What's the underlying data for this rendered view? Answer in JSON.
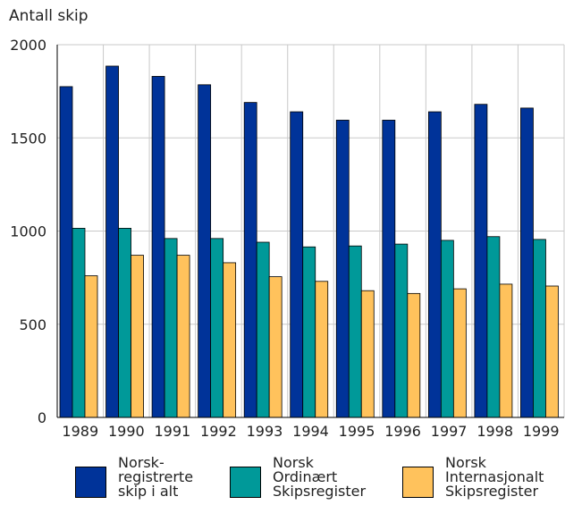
{
  "chart_data": {
    "type": "bar",
    "ylabel": "Antall skip",
    "categories": [
      "1989",
      "1990",
      "1991",
      "1992",
      "1993",
      "1994",
      "1995",
      "1996",
      "1997",
      "1998",
      "1999"
    ],
    "ylim": [
      0,
      2000
    ],
    "yticks": [
      "0",
      "500",
      "1000",
      "1500",
      "2000"
    ],
    "grid": true,
    "legend_position": "bottom",
    "series": [
      {
        "name": "Norsk-\nregistrerte\nskip i alt",
        "color": "#003399",
        "values": [
          1775,
          1885,
          1830,
          1785,
          1690,
          1640,
          1595,
          1595,
          1640,
          1680,
          1660
        ]
      },
      {
        "name": "Norsk\nOrdinært\nSkipsregister",
        "color": "#009999",
        "values": [
          1015,
          1015,
          960,
          960,
          940,
          915,
          920,
          930,
          950,
          970,
          955
        ]
      },
      {
        "name": "Norsk\nInternasjonalt\nSkipsregister",
        "color": "#FFC25C",
        "values": [
          760,
          870,
          870,
          830,
          755,
          730,
          680,
          665,
          690,
          715,
          705
        ]
      }
    ]
  }
}
